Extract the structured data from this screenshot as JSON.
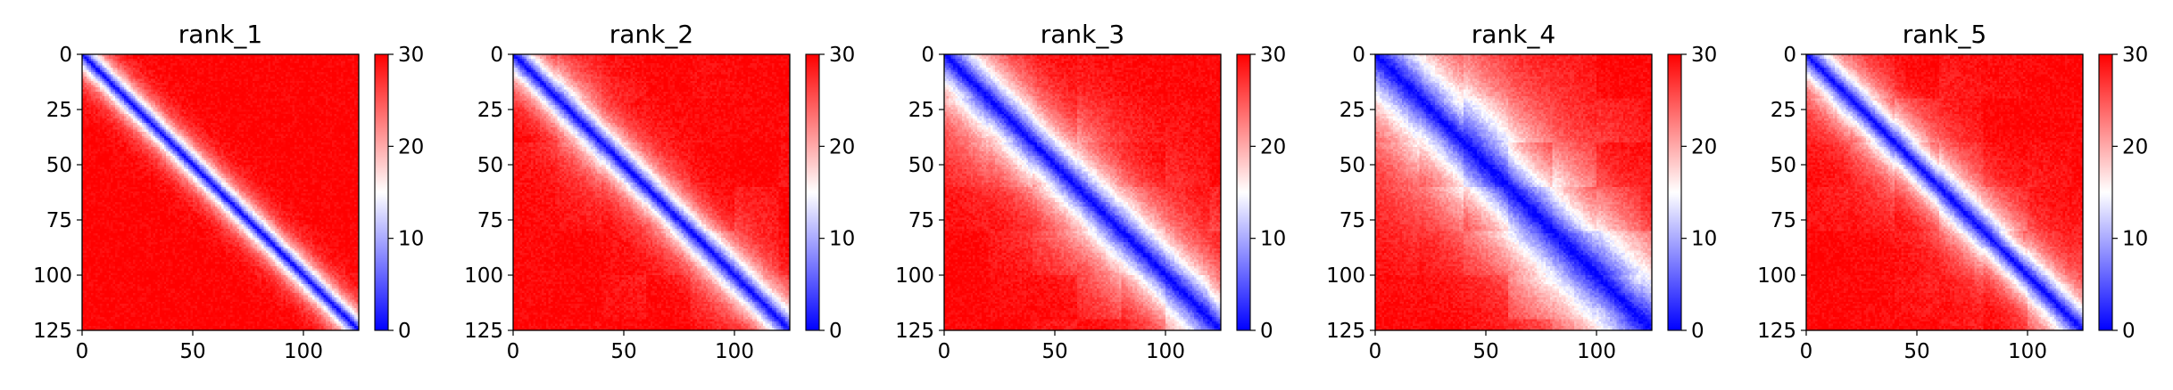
{
  "figure": {
    "panel_count": 5,
    "colormap": {
      "name": "bwr",
      "low": "#0000ff",
      "mid": "#ffffff",
      "high": "#ff0000"
    }
  },
  "chart_data": [
    {
      "type": "heatmap",
      "title": "rank_1",
      "xlabel": "",
      "ylabel": "",
      "xlim": [
        0,
        125
      ],
      "ylim": [
        125,
        0
      ],
      "x_ticks": [
        0,
        50,
        100
      ],
      "y_ticks": [
        0,
        25,
        50,
        75,
        100,
        125
      ],
      "colorbar": {
        "range": [
          0,
          30
        ],
        "ticks": [
          0,
          10,
          20,
          30
        ]
      },
      "pattern": "distance matrix: values near 0 on the diagonal, saturating to ~30 away from it; narrow blue diagonal band"
    },
    {
      "type": "heatmap",
      "title": "rank_2",
      "xlabel": "",
      "ylabel": "",
      "xlim": [
        0,
        125
      ],
      "ylim": [
        125,
        0
      ],
      "x_ticks": [
        0,
        50,
        100
      ],
      "y_ticks": [
        0,
        25,
        50,
        75,
        100,
        125
      ],
      "colorbar": {
        "range": [
          0,
          30
        ],
        "ticks": [
          0,
          10,
          20,
          30
        ]
      },
      "pattern": "distance matrix with a narrow blue diagonal band and paler off-diagonal blocks"
    },
    {
      "type": "heatmap",
      "title": "rank_3",
      "xlabel": "",
      "ylabel": "",
      "xlim": [
        0,
        125
      ],
      "ylim": [
        125,
        0
      ],
      "x_ticks": [
        0,
        50,
        100
      ],
      "y_ticks": [
        0,
        25,
        50,
        75,
        100,
        125
      ],
      "colorbar": {
        "range": [
          0,
          30
        ],
        "ticks": [
          0,
          10,
          20,
          30
        ]
      },
      "pattern": "distance matrix with a wider blue diagonal band and whitish off-diagonal regions"
    },
    {
      "type": "heatmap",
      "title": "rank_4",
      "xlabel": "",
      "ylabel": "",
      "xlim": [
        0,
        125
      ],
      "ylim": [
        125,
        0
      ],
      "x_ticks": [
        0,
        50,
        100
      ],
      "y_ticks": [
        0,
        25,
        50,
        75,
        100,
        125
      ],
      "colorbar": {
        "range": [
          0,
          30
        ],
        "ticks": [
          0,
          10,
          20,
          30
        ]
      },
      "pattern": "distance matrix with a broad diffuse blue diagonal band and large whitish blocks"
    },
    {
      "type": "heatmap",
      "title": "rank_5",
      "xlabel": "",
      "ylabel": "",
      "xlim": [
        0,
        125
      ],
      "ylim": [
        125,
        0
      ],
      "x_ticks": [
        0,
        50,
        100
      ],
      "y_ticks": [
        0,
        25,
        50,
        75,
        100,
        125
      ],
      "colorbar": {
        "range": [
          0,
          30
        ],
        "ticks": [
          0,
          10,
          20,
          30
        ]
      },
      "pattern": "distance matrix with a medium-width blue diagonal band"
    }
  ]
}
